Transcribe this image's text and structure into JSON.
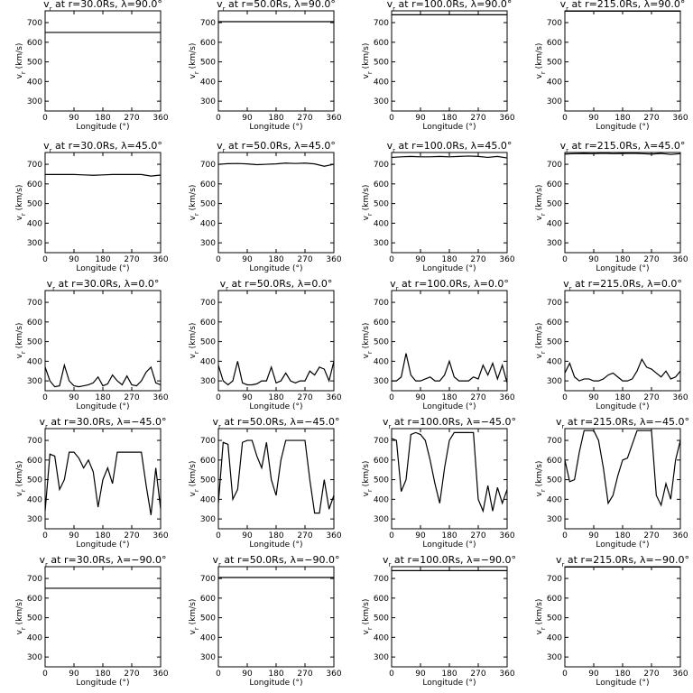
{
  "chart_data": [
    {
      "type": "line",
      "title": {
        "main": "v",
        "sub": "r",
        "rest": " at r=30.0Rs, λ=90.0°"
      },
      "y_label": {
        "main": "v",
        "sub": "r",
        "rest": " (km/s)"
      },
      "x_label": "Longitude (°)",
      "x": [
        0,
        360
      ],
      "values": [
        650,
        650
      ],
      "color": "#000000",
      "xlim": [
        0,
        360
      ],
      "ylim": [
        250,
        760
      ],
      "xticks": [
        0,
        90,
        180,
        270,
        360
      ],
      "yticks": [
        300,
        400,
        500,
        600,
        700
      ]
    },
    {
      "type": "line",
      "title": {
        "main": "v",
        "sub": "r",
        "rest": " at r=50.0Rs, λ=90.0°"
      },
      "y_label": {
        "main": "v",
        "sub": "r",
        "rest": " (km/s)"
      },
      "x_label": "Longitude (°)",
      "x": [
        0,
        360
      ],
      "values": [
        705,
        705
      ],
      "color": "#000000",
      "xlim": [
        0,
        360
      ],
      "ylim": [
        250,
        760
      ],
      "xticks": [
        0,
        90,
        180,
        270,
        360
      ],
      "yticks": [
        300,
        400,
        500,
        600,
        700
      ]
    },
    {
      "type": "line",
      "title": {
        "main": "v",
        "sub": "r",
        "rest": " at r=100.0Rs, λ=90.0°"
      },
      "y_label": {
        "main": "v",
        "sub": "r",
        "rest": " (km/s)"
      },
      "x_label": "Longitude (°)",
      "x": [
        0,
        360
      ],
      "values": [
        740,
        740
      ],
      "color": "#000000",
      "xlim": [
        0,
        360
      ],
      "ylim": [
        250,
        760
      ],
      "xticks": [
        0,
        90,
        180,
        270,
        360
      ],
      "yticks": [
        300,
        400,
        500,
        600,
        700
      ]
    },
    {
      "type": "line",
      "title": {
        "main": "v",
        "sub": "r",
        "rest": " at r=215.0Rs, λ=90.0°"
      },
      "y_label": {
        "main": "v",
        "sub": "r",
        "rest": " (km/s)"
      },
      "x_label": "Longitude (°)",
      "x": [
        0,
        360
      ],
      "values": [
        758,
        758
      ],
      "color": "#000000",
      "xlim": [
        0,
        360
      ],
      "ylim": [
        250,
        760
      ],
      "xticks": [
        0,
        90,
        180,
        270,
        360
      ],
      "yticks": [
        300,
        400,
        500,
        600,
        700
      ]
    },
    {
      "type": "line",
      "title": {
        "main": "v",
        "sub": "r",
        "rest": " at r=30.0Rs, λ=45.0°"
      },
      "y_label": {
        "main": "v",
        "sub": "r",
        "rest": " (km/s)"
      },
      "x_label": "Longitude (°)",
      "x": [
        0,
        30,
        60,
        90,
        120,
        150,
        180,
        210,
        240,
        270,
        300,
        330,
        360
      ],
      "values": [
        648,
        648,
        648,
        648,
        646,
        644,
        646,
        648,
        648,
        648,
        648,
        640,
        645
      ],
      "color": "#000000",
      "xlim": [
        0,
        360
      ],
      "ylim": [
        250,
        760
      ],
      "xticks": [
        0,
        90,
        180,
        270,
        360
      ],
      "yticks": [
        300,
        400,
        500,
        600,
        700
      ]
    },
    {
      "type": "line",
      "title": {
        "main": "v",
        "sub": "r",
        "rest": " at r=50.0Rs, λ=45.0°"
      },
      "y_label": {
        "main": "v",
        "sub": "r",
        "rest": " (km/s)"
      },
      "x_label": "Longitude (°)",
      "x": [
        0,
        30,
        60,
        90,
        120,
        150,
        180,
        210,
        240,
        270,
        300,
        330,
        360
      ],
      "values": [
        700,
        703,
        704,
        702,
        698,
        700,
        702,
        706,
        704,
        706,
        702,
        690,
        700
      ],
      "color": "#000000",
      "xlim": [
        0,
        360
      ],
      "ylim": [
        250,
        760
      ],
      "xticks": [
        0,
        90,
        180,
        270,
        360
      ],
      "yticks": [
        300,
        400,
        500,
        600,
        700
      ]
    },
    {
      "type": "line",
      "title": {
        "main": "v",
        "sub": "r",
        "rest": " at r=100.0Rs, λ=45.0°"
      },
      "y_label": {
        "main": "v",
        "sub": "r",
        "rest": " (km/s)"
      },
      "x_label": "Longitude (°)",
      "x": [
        0,
        30,
        60,
        90,
        120,
        150,
        180,
        210,
        240,
        270,
        300,
        330,
        360
      ],
      "values": [
        735,
        738,
        740,
        738,
        738,
        740,
        738,
        740,
        742,
        740,
        735,
        740,
        732
      ],
      "color": "#000000",
      "xlim": [
        0,
        360
      ],
      "ylim": [
        250,
        760
      ],
      "xticks": [
        0,
        90,
        180,
        270,
        360
      ],
      "yticks": [
        300,
        400,
        500,
        600,
        700
      ]
    },
    {
      "type": "line",
      "title": {
        "main": "v",
        "sub": "r",
        "rest": " at r=215.0Rs, λ=45.0°"
      },
      "y_label": {
        "main": "v",
        "sub": "r",
        "rest": " (km/s)"
      },
      "x_label": "Longitude (°)",
      "x": [
        0,
        30,
        60,
        90,
        120,
        150,
        180,
        210,
        240,
        270,
        300,
        330,
        360
      ],
      "values": [
        752,
        754,
        755,
        754,
        756,
        754,
        755,
        756,
        754,
        752,
        755,
        750,
        754
      ],
      "color": "#000000",
      "xlim": [
        0,
        360
      ],
      "ylim": [
        250,
        760
      ],
      "xticks": [
        0,
        90,
        180,
        270,
        360
      ],
      "yticks": [
        300,
        400,
        500,
        600,
        700
      ]
    },
    {
      "type": "line",
      "title": {
        "main": "v",
        "sub": "r",
        "rest": " at r=30.0Rs, λ=0.0°"
      },
      "y_label": {
        "main": "v",
        "sub": "r",
        "rest": " (km/s)"
      },
      "x_label": "Longitude (°)",
      "x": [
        0,
        15,
        30,
        45,
        60,
        75,
        90,
        105,
        120,
        135,
        150,
        165,
        180,
        195,
        210,
        225,
        240,
        255,
        270,
        285,
        300,
        315,
        330,
        345,
        360
      ],
      "values": [
        370,
        300,
        270,
        275,
        380,
        300,
        275,
        270,
        275,
        280,
        290,
        320,
        275,
        285,
        330,
        300,
        280,
        325,
        280,
        275,
        300,
        345,
        370,
        290,
        280
      ],
      "color": "#000000",
      "xlim": [
        0,
        360
      ],
      "ylim": [
        250,
        760
      ],
      "xticks": [
        0,
        90,
        180,
        270,
        360
      ],
      "yticks": [
        300,
        400,
        500,
        600,
        700
      ]
    },
    {
      "type": "line",
      "title": {
        "main": "v",
        "sub": "r",
        "rest": " at r=50.0Rs, λ=0.0°"
      },
      "y_label": {
        "main": "v",
        "sub": "r",
        "rest": " (km/s)"
      },
      "x_label": "Longitude (°)",
      "x": [
        0,
        15,
        30,
        45,
        60,
        75,
        90,
        105,
        120,
        135,
        150,
        165,
        180,
        195,
        210,
        225,
        240,
        255,
        270,
        285,
        300,
        315,
        330,
        345,
        360
      ],
      "values": [
        380,
        300,
        280,
        300,
        400,
        290,
        280,
        280,
        285,
        300,
        300,
        370,
        290,
        300,
        340,
        300,
        290,
        300,
        300,
        350,
        330,
        370,
        360,
        300,
        400
      ],
      "color": "#000000",
      "xlim": [
        0,
        360
      ],
      "ylim": [
        250,
        760
      ],
      "xticks": [
        0,
        90,
        180,
        270,
        360
      ],
      "yticks": [
        300,
        400,
        500,
        600,
        700
      ]
    },
    {
      "type": "line",
      "title": {
        "main": "v",
        "sub": "r",
        "rest": " at r=100.0Rs, λ=0.0°"
      },
      "y_label": {
        "main": "v",
        "sub": "r",
        "rest": " (km/s)"
      },
      "x_label": "Longitude (°)",
      "x": [
        0,
        15,
        30,
        45,
        60,
        75,
        90,
        105,
        120,
        135,
        150,
        165,
        180,
        195,
        210,
        225,
        240,
        255,
        270,
        285,
        300,
        315,
        330,
        345,
        360
      ],
      "values": [
        300,
        300,
        320,
        440,
        330,
        300,
        300,
        310,
        320,
        300,
        300,
        330,
        400,
        320,
        300,
        300,
        300,
        320,
        310,
        380,
        330,
        390,
        310,
        380,
        290
      ],
      "color": "#000000",
      "xlim": [
        0,
        360
      ],
      "ylim": [
        250,
        760
      ],
      "xticks": [
        0,
        90,
        180,
        270,
        360
      ],
      "yticks": [
        300,
        400,
        500,
        600,
        700
      ]
    },
    {
      "type": "line",
      "title": {
        "main": "v",
        "sub": "r",
        "rest": " at r=215.0Rs, λ=0.0°"
      },
      "y_label": {
        "main": "v",
        "sub": "r",
        "rest": " (km/s)"
      },
      "x_label": "Longitude (°)",
      "x": [
        0,
        15,
        30,
        45,
        60,
        75,
        90,
        105,
        120,
        135,
        150,
        165,
        180,
        195,
        210,
        225,
        240,
        255,
        270,
        285,
        300,
        315,
        330,
        345,
        360
      ],
      "values": [
        340,
        390,
        320,
        300,
        310,
        310,
        300,
        300,
        310,
        330,
        340,
        320,
        300,
        300,
        310,
        350,
        410,
        370,
        360,
        340,
        320,
        350,
        310,
        320,
        350
      ],
      "color": "#000000",
      "xlim": [
        0,
        360
      ],
      "ylim": [
        250,
        760
      ],
      "xticks": [
        0,
        90,
        180,
        270,
        360
      ],
      "yticks": [
        300,
        400,
        500,
        600,
        700
      ]
    },
    {
      "type": "line",
      "title": {
        "main": "v",
        "sub": "r",
        "rest": " at r=30.0Rs, λ=−45.0°"
      },
      "y_label": {
        "main": "v",
        "sub": "r",
        "rest": " (km/s)"
      },
      "x_label": "Longitude (°)",
      "x": [
        0,
        15,
        30,
        45,
        60,
        75,
        90,
        105,
        120,
        135,
        150,
        165,
        180,
        195,
        210,
        225,
        240,
        255,
        270,
        285,
        300,
        315,
        330,
        345,
        360
      ],
      "values": [
        340,
        630,
        620,
        450,
        500,
        640,
        640,
        610,
        560,
        600,
        540,
        360,
        500,
        560,
        480,
        640,
        640,
        640,
        640,
        640,
        640,
        470,
        320,
        560,
        350
      ],
      "color": "#000000",
      "xlim": [
        0,
        360
      ],
      "ylim": [
        250,
        760
      ],
      "xticks": [
        0,
        90,
        180,
        270,
        360
      ],
      "yticks": [
        300,
        400,
        500,
        600,
        700
      ]
    },
    {
      "type": "line",
      "title": {
        "main": "v",
        "sub": "r",
        "rest": " at r=50.0Rs, λ=−45.0°"
      },
      "y_label": {
        "main": "v",
        "sub": "r",
        "rest": " (km/s)"
      },
      "x_label": "Longitude (°)",
      "x": [
        0,
        15,
        30,
        45,
        60,
        75,
        90,
        105,
        120,
        135,
        150,
        165,
        180,
        195,
        210,
        225,
        240,
        255,
        270,
        285,
        300,
        315,
        330,
        345,
        360
      ],
      "values": [
        380,
        690,
        680,
        400,
        450,
        690,
        700,
        700,
        620,
        560,
        690,
        500,
        420,
        600,
        700,
        700,
        700,
        700,
        700,
        500,
        330,
        330,
        500,
        350,
        420
      ],
      "color": "#000000",
      "xlim": [
        0,
        360
      ],
      "ylim": [
        250,
        760
      ],
      "xticks": [
        0,
        90,
        180,
        270,
        360
      ],
      "yticks": [
        300,
        400,
        500,
        600,
        700
      ]
    },
    {
      "type": "line",
      "title": {
        "main": "v",
        "sub": "r",
        "rest": " at r=100.0Rs, λ=−45.0°"
      },
      "y_label": {
        "main": "v",
        "sub": "r",
        "rest": " (km/s)"
      },
      "x_label": "Longitude (°)",
      "x": [
        0,
        15,
        30,
        45,
        60,
        75,
        90,
        105,
        120,
        135,
        150,
        165,
        180,
        195,
        210,
        225,
        240,
        255,
        270,
        285,
        300,
        315,
        330,
        345,
        360
      ],
      "values": [
        710,
        700,
        440,
        500,
        730,
        740,
        730,
        700,
        600,
        480,
        380,
        560,
        700,
        740,
        740,
        740,
        740,
        740,
        400,
        340,
        470,
        340,
        460,
        380,
        450
      ],
      "color": "#000000",
      "xlim": [
        0,
        360
      ],
      "ylim": [
        250,
        760
      ],
      "xticks": [
        0,
        90,
        180,
        270,
        360
      ],
      "yticks": [
        300,
        400,
        500,
        600,
        700
      ]
    },
    {
      "type": "line",
      "title": {
        "main": "v",
        "sub": "r",
        "rest": " at r=215.0Rs, λ=−45.0°"
      },
      "y_label": {
        "main": "v",
        "sub": "r",
        "rest": " (km/s)"
      },
      "x_label": "Longitude (°)",
      "x": [
        0,
        15,
        30,
        45,
        60,
        75,
        90,
        105,
        120,
        135,
        150,
        165,
        180,
        195,
        210,
        225,
        240,
        255,
        270,
        285,
        300,
        315,
        330,
        345,
        360
      ],
      "values": [
        600,
        490,
        500,
        640,
        750,
        750,
        750,
        700,
        560,
        380,
        420,
        520,
        600,
        610,
        680,
        750,
        750,
        750,
        750,
        420,
        370,
        480,
        400,
        600,
        700
      ],
      "color": "#000000",
      "xlim": [
        0,
        360
      ],
      "ylim": [
        250,
        760
      ],
      "xticks": [
        0,
        90,
        180,
        270,
        360
      ],
      "yticks": [
        300,
        400,
        500,
        600,
        700
      ]
    },
    {
      "type": "line",
      "title": {
        "main": "v",
        "sub": "r",
        "rest": " at r=30.0Rs, λ=−90.0°"
      },
      "y_label": {
        "main": "v",
        "sub": "r",
        "rest": " (km/s)"
      },
      "x_label": "Longitude (°)",
      "x": [
        0,
        360
      ],
      "values": [
        650,
        650
      ],
      "color": "#000000",
      "xlim": [
        0,
        360
      ],
      "ylim": [
        250,
        760
      ],
      "xticks": [
        0,
        90,
        180,
        270,
        360
      ],
      "yticks": [
        300,
        400,
        500,
        600,
        700
      ]
    },
    {
      "type": "line",
      "title": {
        "main": "v",
        "sub": "r",
        "rest": " at r=50.0Rs, λ=−90.0°"
      },
      "y_label": {
        "main": "v",
        "sub": "r",
        "rest": " (km/s)"
      },
      "x_label": "Longitude (°)",
      "x": [
        0,
        360
      ],
      "values": [
        705,
        705
      ],
      "color": "#000000",
      "xlim": [
        0,
        360
      ],
      "ylim": [
        250,
        760
      ],
      "xticks": [
        0,
        90,
        180,
        270,
        360
      ],
      "yticks": [
        300,
        400,
        500,
        600,
        700
      ]
    },
    {
      "type": "line",
      "title": {
        "main": "v",
        "sub": "r",
        "rest": " at r=100.0Rs, λ=−90.0°"
      },
      "y_label": {
        "main": "v",
        "sub": "r",
        "rest": " (km/s)"
      },
      "x_label": "Longitude (°)",
      "x": [
        0,
        360
      ],
      "values": [
        740,
        740
      ],
      "color": "#000000",
      "xlim": [
        0,
        360
      ],
      "ylim": [
        250,
        760
      ],
      "xticks": [
        0,
        90,
        180,
        270,
        360
      ],
      "yticks": [
        300,
        400,
        500,
        600,
        700
      ]
    },
    {
      "type": "line",
      "title": {
        "main": "v",
        "sub": "r",
        "rest": " at r=215.0Rs, λ=−90.0°"
      },
      "y_label": {
        "main": "v",
        "sub": "r",
        "rest": " (km/s)"
      },
      "x_label": "Longitude (°)",
      "x": [
        0,
        360
      ],
      "values": [
        758,
        758
      ],
      "color": "#000000",
      "xlim": [
        0,
        360
      ],
      "ylim": [
        250,
        760
      ],
      "xticks": [
        0,
        90,
        180,
        270,
        360
      ],
      "yticks": [
        300,
        400,
        500,
        600,
        700
      ]
    }
  ]
}
